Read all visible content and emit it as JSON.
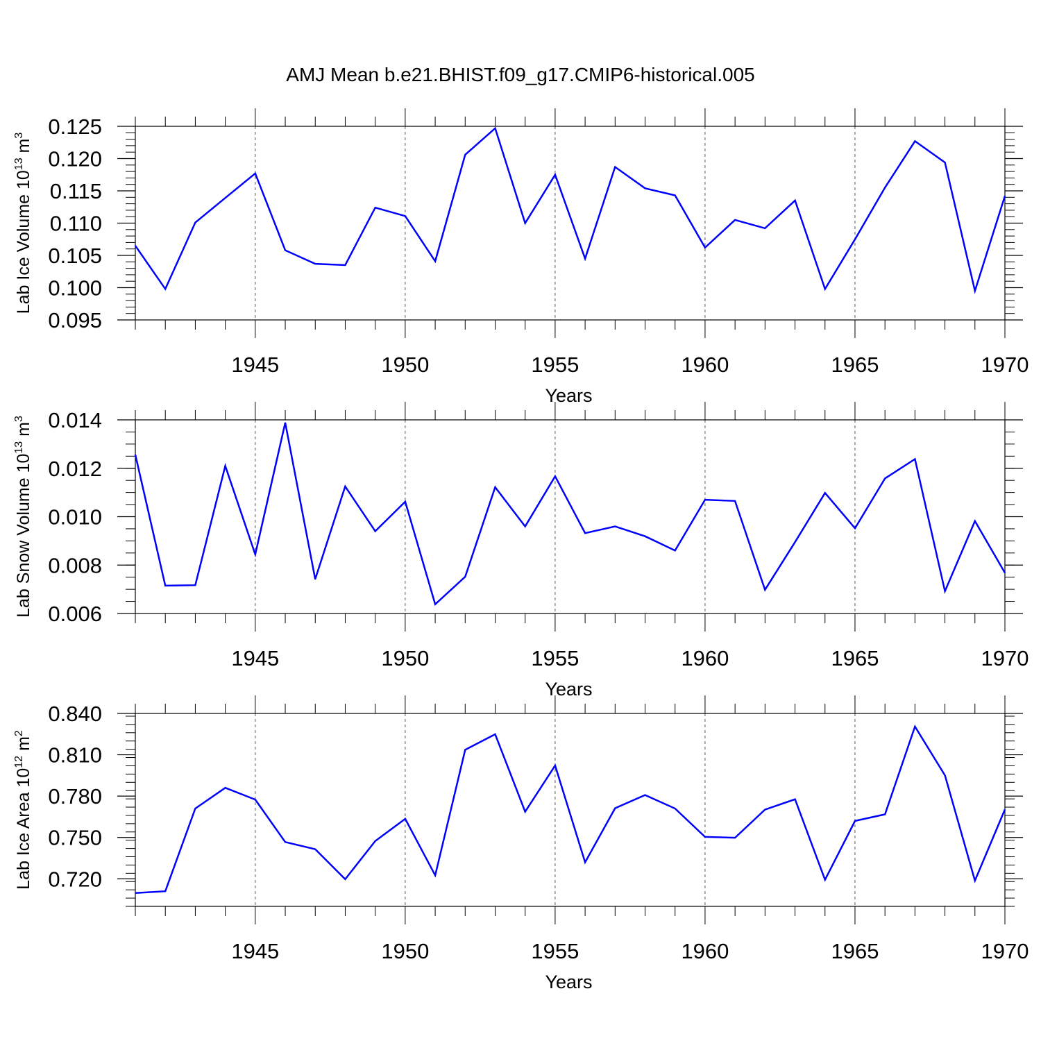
{
  "title": "AMJ Mean b.e21.BHIST.f09_g17.CMIP6-historical.005",
  "chart_data": [
    {
      "type": "line",
      "ylabel": "Lab Ice Volume 10",
      "ylabel_exp": "13",
      "ylabel_unit": "m",
      "ylabel_unit_exp": "3",
      "xlabel": "Years",
      "xlim": [
        1941,
        1970
      ],
      "ylim": [
        0.095,
        0.125
      ],
      "x_ticks": [
        1945,
        1950,
        1955,
        1960,
        1965,
        1970
      ],
      "y_ticks": [
        0.095,
        0.1,
        0.105,
        0.11,
        0.115,
        0.12,
        0.125
      ],
      "y_tick_labels": [
        "0.095",
        "0.100",
        "0.105",
        "0.110",
        "0.115",
        "0.120",
        "0.125"
      ],
      "y_minor_step": 0.001,
      "grid_x": "dashed",
      "line_color": "#0000ff",
      "x": [
        1941,
        1942,
        1943,
        1944,
        1945,
        1946,
        1947,
        1948,
        1949,
        1950,
        1951,
        1952,
        1953,
        1954,
        1955,
        1956,
        1957,
        1958,
        1959,
        1960,
        1961,
        1962,
        1963,
        1964,
        1965,
        1966,
        1967,
        1968,
        1969,
        1970
      ],
      "y": [
        0.1065,
        0.0998,
        0.1101,
        0.1139,
        0.1177,
        0.1058,
        0.1037,
        0.1035,
        0.1124,
        0.1111,
        0.1041,
        0.1206,
        0.1247,
        0.11,
        0.1175,
        0.1045,
        0.1187,
        0.1154,
        0.1143,
        0.1062,
        0.1105,
        0.1092,
        0.1135,
        0.0998,
        0.1075,
        0.1155,
        0.1227,
        0.1194,
        0.0995,
        0.1142
      ]
    },
    {
      "type": "line",
      "ylabel": "Lab Snow Volume 10",
      "ylabel_exp": "13",
      "ylabel_unit": "m",
      "ylabel_unit_exp": "3",
      "xlabel": "Years",
      "xlim": [
        1941,
        1970
      ],
      "ylim": [
        0.006,
        0.014
      ],
      "x_ticks": [
        1945,
        1950,
        1955,
        1960,
        1965,
        1970
      ],
      "y_ticks": [
        0.006,
        0.008,
        0.01,
        0.012,
        0.014
      ],
      "y_tick_labels": [
        "0.006",
        "0.008",
        "0.010",
        "0.012",
        "0.014"
      ],
      "y_minor_step": 0.0005,
      "grid_x": "dashed",
      "line_color": "#0000ff",
      "x": [
        1941,
        1942,
        1943,
        1944,
        1945,
        1946,
        1947,
        1948,
        1949,
        1950,
        1951,
        1952,
        1953,
        1954,
        1955,
        1956,
        1957,
        1958,
        1959,
        1960,
        1961,
        1962,
        1963,
        1964,
        1965,
        1966,
        1967,
        1968,
        1969,
        1970
      ],
      "y": [
        0.01256,
        0.00715,
        0.00717,
        0.0121,
        0.00844,
        0.01388,
        0.00742,
        0.01125,
        0.0094,
        0.01062,
        0.00638,
        0.00752,
        0.01122,
        0.0096,
        0.01167,
        0.00932,
        0.0096,
        0.00919,
        0.0086,
        0.0107,
        0.01065,
        0.00698,
        0.00895,
        0.01098,
        0.00952,
        0.01158,
        0.01238,
        0.00692,
        0.00982,
        0.00768
      ]
    },
    {
      "type": "line",
      "ylabel": "Lab Ice Area 10",
      "ylabel_exp": "12",
      "ylabel_unit": "m",
      "ylabel_unit_exp": "2",
      "xlabel": "Years",
      "xlim": [
        1941,
        1970
      ],
      "ylim": [
        0.7,
        0.84
      ],
      "x_ticks": [
        1945,
        1950,
        1955,
        1960,
        1965,
        1970
      ],
      "y_ticks": [
        0.72,
        0.75,
        0.78,
        0.81,
        0.84
      ],
      "y_tick_labels": [
        "0.720",
        "0.750",
        "0.780",
        "0.810",
        "0.840"
      ],
      "y_minor_step": 0.006,
      "grid_x": "dashed",
      "line_color": "#0000ff",
      "x": [
        1941,
        1942,
        1943,
        1944,
        1945,
        1946,
        1947,
        1948,
        1949,
        1950,
        1951,
        1952,
        1953,
        1954,
        1955,
        1956,
        1957,
        1958,
        1959,
        1960,
        1961,
        1962,
        1963,
        1964,
        1965,
        1966,
        1967,
        1968,
        1969,
        1970
      ],
      "y": [
        0.7097,
        0.711,
        0.771,
        0.786,
        0.7775,
        0.7467,
        0.7415,
        0.7197,
        0.7474,
        0.7635,
        0.7225,
        0.8136,
        0.8249,
        0.7687,
        0.8022,
        0.732,
        0.7712,
        0.7808,
        0.771,
        0.7504,
        0.7498,
        0.7702,
        0.7777,
        0.7193,
        0.762,
        0.7668,
        0.8305,
        0.7951,
        0.7187,
        0.7703
      ]
    }
  ]
}
